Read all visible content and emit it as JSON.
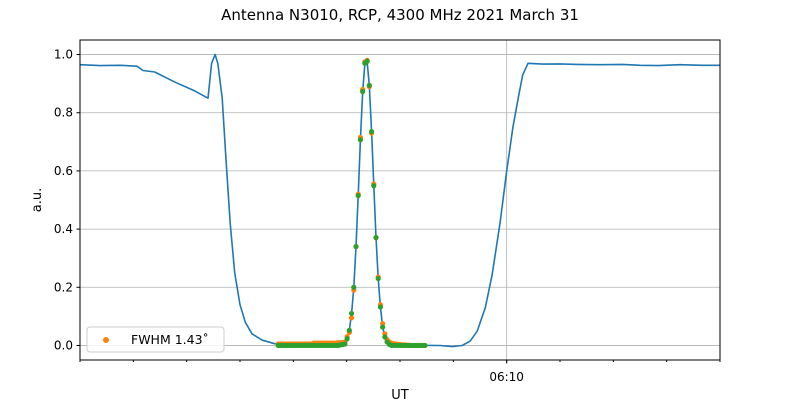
{
  "chart_data": {
    "type": "line",
    "title": "Antenna N3010, RCP, 4300 MHz 2021 March 31",
    "xlabel": "UT",
    "ylabel": "a.u.",
    "xlim": [
      "06:02:00",
      "06:14:00"
    ],
    "ylim": [
      -0.05,
      1.05
    ],
    "x_major_ticks": [
      {
        "t": "06:10:00",
        "label": "06:10"
      }
    ],
    "x_minor_tick_interval_minutes": 1,
    "y_ticks": [
      0.0,
      0.2,
      0.4,
      0.6,
      0.8,
      1.0
    ],
    "y_tick_labels": [
      "0.0",
      "0.2",
      "0.4",
      "0.6",
      "0.8",
      "1.0"
    ],
    "grid": true,
    "legend": {
      "placement": "lower-left",
      "entries": [
        {
          "label": "FWHM 1.43˚",
          "color": "#ff7f0e",
          "marker": "dot"
        }
      ]
    },
    "colors": {
      "line": "#1f77b4",
      "orange": "#ff7f0e",
      "green": "#2ca02c"
    },
    "line_series": [
      [
        "06:02:00",
        0.965
      ],
      [
        "06:02:22",
        0.962
      ],
      [
        "06:02:45",
        0.963
      ],
      [
        "06:03:04",
        0.96
      ],
      [
        "06:03:11",
        0.945
      ],
      [
        "06:03:24",
        0.94
      ],
      [
        "06:03:47",
        0.905
      ],
      [
        "06:04:09",
        0.875
      ],
      [
        "06:04:24",
        0.85
      ],
      [
        "06:04:28",
        0.97
      ],
      [
        "06:04:32",
        1.0
      ],
      [
        "06:04:35",
        0.97
      ],
      [
        "06:04:40",
        0.85
      ],
      [
        "06:04:44",
        0.65
      ],
      [
        "06:04:49",
        0.42
      ],
      [
        "06:04:54",
        0.25
      ],
      [
        "06:05:00",
        0.14
      ],
      [
        "06:05:06",
        0.08
      ],
      [
        "06:05:13.5",
        0.04
      ],
      [
        "06:05:25",
        0.018
      ],
      [
        "06:05:39",
        0.006
      ],
      [
        "06:05:56",
        0.002
      ],
      [
        "06:06:30",
        0.002
      ],
      [
        "06:06:58",
        0.005
      ],
      [
        "06:07:00.5",
        0.023
      ],
      [
        "06:07:03",
        0.052
      ],
      [
        "06:07:05.5",
        0.11
      ],
      [
        "06:07:08",
        0.2
      ],
      [
        "06:07:10.5",
        0.34
      ],
      [
        "06:07:13",
        0.515
      ],
      [
        "06:07:15.5",
        0.707
      ],
      [
        "06:07:18",
        0.873
      ],
      [
        "06:07:20.5",
        0.97
      ],
      [
        "06:07:23",
        0.977
      ],
      [
        "06:07:25.5",
        0.894
      ],
      [
        "06:07:28",
        0.735
      ],
      [
        "06:07:30.5",
        0.549
      ],
      [
        "06:07:33",
        0.371
      ],
      [
        "06:07:35.5",
        0.23
      ],
      [
        "06:07:38",
        0.132
      ],
      [
        "06:07:40.5",
        0.063
      ],
      [
        "06:07:43",
        0.029
      ],
      [
        "06:07:45.5",
        0.012
      ],
      [
        "06:07:48",
        0.004
      ],
      [
        "06:08:00",
        0.001
      ],
      [
        "06:08:45",
        0.0
      ],
      [
        "06:08:58.5",
        -0.004
      ],
      [
        "06:09:10",
        0.0
      ],
      [
        "06:09:19",
        0.015
      ],
      [
        "06:09:27",
        0.05
      ],
      [
        "06:09:36",
        0.13
      ],
      [
        "06:09:43.5",
        0.24
      ],
      [
        "06:09:52.5",
        0.42
      ],
      [
        "06:10:00",
        0.6
      ],
      [
        "06:10:07",
        0.75
      ],
      [
        "06:10:13",
        0.85
      ],
      [
        "06:10:18",
        0.93
      ],
      [
        "06:10:24",
        0.97
      ],
      [
        "06:10:40",
        0.967
      ],
      [
        "06:11:00",
        0.968
      ],
      [
        "06:11:20",
        0.966
      ],
      [
        "06:11:45",
        0.965
      ],
      [
        "06:12:10",
        0.966
      ],
      [
        "06:12:30",
        0.963
      ],
      [
        "06:12:50",
        0.962
      ],
      [
        "06:13:15",
        0.965
      ],
      [
        "06:13:40",
        0.963
      ],
      [
        "06:14:00",
        0.963
      ]
    ],
    "scatter_times": [
      "06:05:43.0",
      "06:05:45.5",
      "06:05:48.0",
      "06:05:50.5",
      "06:05:53.0",
      "06:05:55.5",
      "06:05:58.0",
      "06:06:00.5",
      "06:06:03.0",
      "06:06:05.5",
      "06:06:08.0",
      "06:06:10.5",
      "06:06:13.0",
      "06:06:15.5",
      "06:06:18.0",
      "06:06:20.5",
      "06:06:23.0",
      "06:06:25.5",
      "06:06:28.0",
      "06:06:30.5",
      "06:06:33.0",
      "06:06:35.5",
      "06:06:38.0",
      "06:06:40.5",
      "06:06:43.0",
      "06:06:45.5",
      "06:06:48.0",
      "06:06:50.5",
      "06:06:53.0",
      "06:06:55.5",
      "06:06:58.0",
      "06:07:00.5",
      "06:07:03.0",
      "06:07:05.5",
      "06:07:08.0",
      "06:07:10.5",
      "06:07:13.0",
      "06:07:15.5",
      "06:07:18.0",
      "06:07:20.5",
      "06:07:23.0",
      "06:07:25.5",
      "06:07:28.0",
      "06:07:30.5",
      "06:07:33.0",
      "06:07:35.5",
      "06:07:38.0",
      "06:07:40.5",
      "06:07:43.0",
      "06:07:45.5",
      "06:07:48.0",
      "06:07:50.5",
      "06:07:53.0",
      "06:07:55.5",
      "06:07:58.0",
      "06:08:00.5",
      "06:08:03.0",
      "06:08:05.5",
      "06:08:08.0",
      "06:08:10.5",
      "06:08:13.0",
      "06:08:15.5",
      "06:08:18.0",
      "06:08:20.5",
      "06:08:23.0",
      "06:08:25.5",
      "06:08:28.0"
    ],
    "scatter_orange": [
      0.005,
      0.005,
      0.005,
      0.005,
      0.005,
      0.005,
      0.005,
      0.005,
      0.005,
      0.005,
      0.005,
      0.005,
      0.005,
      0.005,
      0.005,
      0.005,
      0.008,
      0.008,
      0.008,
      0.008,
      0.008,
      0.008,
      0.008,
      0.008,
      0.008,
      0.008,
      0.008,
      0.01,
      0.01,
      0.01,
      0.012,
      0.03,
      0.045,
      0.095,
      0.19,
      0.34,
      0.52,
      0.715,
      0.88,
      0.975,
      0.98,
      0.89,
      0.73,
      0.555,
      0.37,
      0.235,
      0.14,
      0.075,
      0.04,
      0.02,
      0.012,
      0.008,
      0.006,
      0.005,
      0.004,
      0.003,
      0.002,
      0.002,
      0.001,
      0.001,
      0.0,
      0.0,
      0.0,
      0.0,
      0.0,
      0.0,
      0.0
    ],
    "scatter_green": [
      0.0,
      0.0,
      0.0,
      0.0,
      0.0,
      0.0,
      0.0,
      0.0,
      0.0,
      0.0,
      0.0,
      0.0,
      0.0,
      0.0,
      0.0,
      0.0,
      0.0,
      0.0,
      0.0,
      0.0,
      0.0,
      0.0,
      0.0,
      0.0,
      0.0,
      0.0,
      0.0,
      0.0,
      0.002,
      0.003,
      0.005,
      0.023,
      0.052,
      0.11,
      0.2,
      0.34,
      0.515,
      0.707,
      0.873,
      0.97,
      0.977,
      0.894,
      0.735,
      0.549,
      0.371,
      0.23,
      0.132,
      0.063,
      0.029,
      0.012,
      0.004,
      0.0,
      0.0,
      0.0,
      0.0,
      0.0,
      0.0,
      0.0,
      0.0,
      0.0,
      0.0,
      0.0,
      0.0,
      0.0,
      0.0,
      0.0,
      0.0
    ]
  }
}
